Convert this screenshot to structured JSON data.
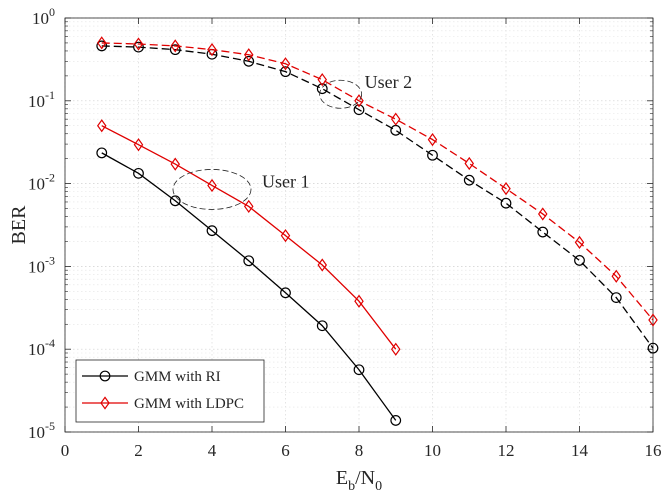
{
  "chart_data": {
    "type": "line",
    "title": "",
    "xlabel": {
      "main": "E",
      "sub1": "b",
      "mid": "/N",
      "sub2": "0"
    },
    "ylabel": "BER",
    "yscale": "log",
    "xlim": [
      0,
      16
    ],
    "ylim": [
      1e-05,
      1
    ],
    "grid": true,
    "legend_position": "bottom-left",
    "x_ticks": [
      "0",
      "2",
      "4",
      "6",
      "8",
      "10",
      "12",
      "14",
      "16"
    ],
    "y_ticks": [
      {
        "base": "10",
        "exp": "-5"
      },
      {
        "base": "10",
        "exp": "-4"
      },
      {
        "base": "10",
        "exp": "-3"
      },
      {
        "base": "10",
        "exp": "-2"
      },
      {
        "base": "10",
        "exp": "-1"
      },
      {
        "base": "10",
        "exp": "0"
      }
    ],
    "series": [
      {
        "name": "GMM with RI",
        "group": "User 1",
        "color": "#000000",
        "marker": "circle",
        "dash": "solid",
        "in_legend": true,
        "x": [
          1,
          2,
          3,
          4,
          5,
          6,
          7,
          8,
          9
        ],
        "y": [
          0.0235,
          0.0133,
          0.0062,
          0.0027,
          0.00117,
          0.00048,
          0.000192,
          5.65e-05,
          1.38e-05
        ]
      },
      {
        "name": "GMM with LDPC",
        "group": "User 1",
        "color": "#e00000",
        "marker": "diamond",
        "dash": "solid",
        "in_legend": true,
        "x": [
          1,
          2,
          3,
          4,
          5,
          6,
          7,
          8,
          9
        ],
        "y": [
          0.05,
          0.0295,
          0.0172,
          0.0095,
          0.0053,
          0.00235,
          0.00104,
          0.00038,
          0.0001
        ]
      },
      {
        "name": "GMM with RI",
        "group": "User 2",
        "color": "#000000",
        "marker": "circle",
        "dash": "dashed",
        "in_legend": false,
        "x": [
          1,
          2,
          3,
          4,
          5,
          6,
          7,
          8,
          9,
          10,
          11,
          12,
          13,
          14,
          15,
          16
        ],
        "y": [
          0.46,
          0.445,
          0.415,
          0.365,
          0.3,
          0.225,
          0.14,
          0.078,
          0.044,
          0.022,
          0.011,
          0.0058,
          0.0026,
          0.00118,
          0.00042,
          0.000103
        ]
      },
      {
        "name": "GMM with LDPC",
        "group": "User 2",
        "color": "#e00000",
        "marker": "diamond",
        "dash": "dashed",
        "in_legend": false,
        "x": [
          1,
          2,
          3,
          4,
          5,
          6,
          7,
          8,
          9,
          10,
          11,
          12,
          13,
          14,
          15,
          16
        ],
        "y": [
          0.5,
          0.485,
          0.46,
          0.415,
          0.36,
          0.28,
          0.18,
          0.1,
          0.06,
          0.034,
          0.0175,
          0.0087,
          0.0043,
          0.00195,
          0.00076,
          0.000225
        ]
      }
    ],
    "annotations": [
      {
        "text": "User 1",
        "ellipse_center": [
          4,
          0.0085
        ]
      },
      {
        "text": "User 2",
        "ellipse_center": [
          7.5,
          0.12
        ]
      }
    ]
  }
}
